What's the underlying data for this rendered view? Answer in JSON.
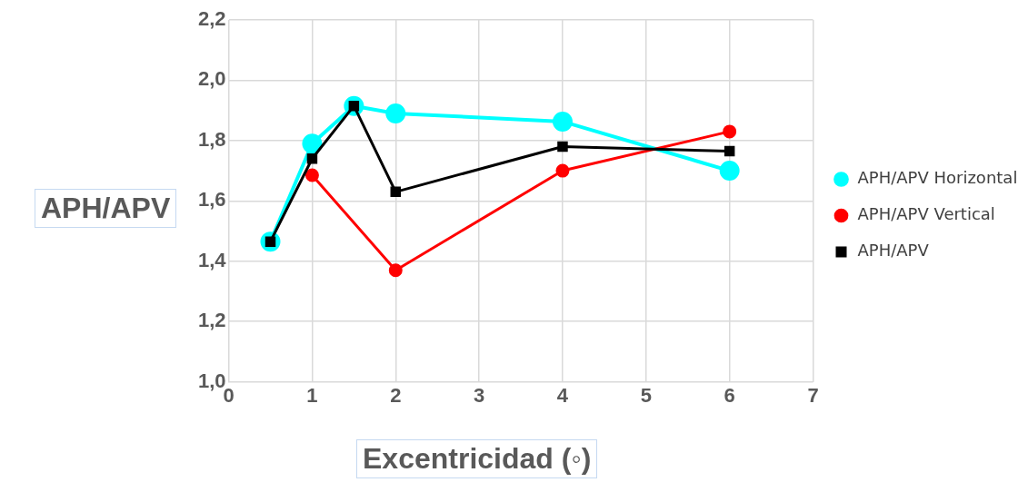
{
  "chart_data": {
    "type": "line",
    "xlabel": "Excentricidad (◦)",
    "ylabel": "APH/APV",
    "xlim": [
      0,
      7
    ],
    "xticks": [
      0,
      1,
      2,
      3,
      4,
      5,
      6,
      7
    ],
    "ylim": [
      1,
      2.2
    ],
    "yticks": [
      {
        "value": 1,
        "label": "1,0"
      },
      {
        "value": 1.2,
        "label": "1,2"
      },
      {
        "value": 1.4,
        "label": "1,4"
      },
      {
        "value": 1.6,
        "label": "1,6"
      },
      {
        "value": 1.8,
        "label": "1,8"
      },
      {
        "value": 2,
        "label": "2,0"
      },
      {
        "value": 2.2,
        "label": "2,2"
      }
    ],
    "grid": true,
    "legend": "right",
    "series": [
      {
        "name": "APH/APV Horizontal",
        "color": "#00ffff",
        "marker": "circle",
        "x": [
          0.5,
          1,
          1.5,
          2,
          4,
          6
        ],
        "values": [
          1.465,
          1.79,
          1.915,
          1.89,
          1.863,
          1.7
        ]
      },
      {
        "name": "APH/APV Vertical",
        "color": "#ff0000",
        "marker": "circle",
        "x": [
          1,
          2,
          4,
          6
        ],
        "values": [
          1.685,
          1.37,
          1.7,
          1.83
        ]
      },
      {
        "name": "APH/APV",
        "color": "#000000",
        "marker": "square",
        "x": [
          0.5,
          1,
          1.5,
          2,
          4,
          6
        ],
        "values": [
          1.465,
          1.74,
          1.915,
          1.63,
          1.78,
          1.765
        ]
      }
    ]
  }
}
